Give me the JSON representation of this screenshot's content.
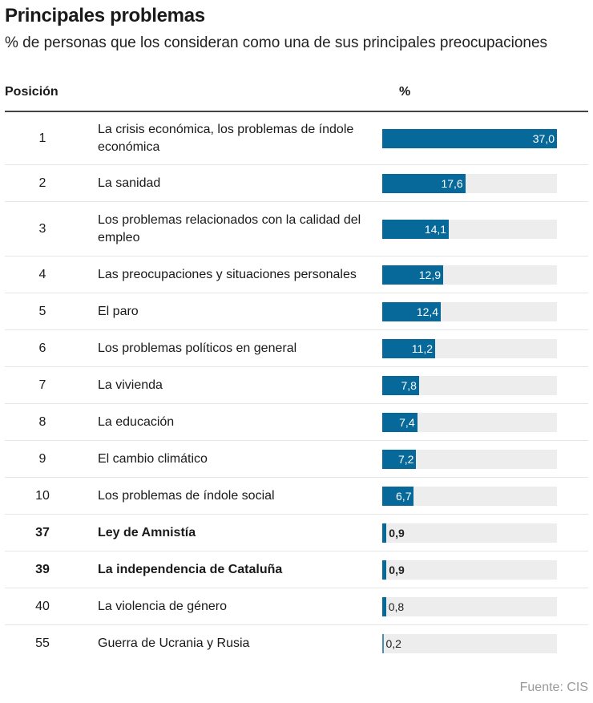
{
  "title": "Principales problemas",
  "subtitle": "% de personas que los consideran como una de sus principales preocupaciones",
  "source": "Fuente: CIS",
  "colors": {
    "bar": "#06699a",
    "track": "#ededed"
  },
  "chart_data": {
    "type": "table",
    "columns": [
      "Posición",
      "%"
    ],
    "xlim": [
      0,
      37
    ],
    "rows": [
      {
        "position": "1",
        "label": "La crisis económica, los problemas de índole económica",
        "value": 37.0,
        "value_label": "37,0",
        "bold": false
      },
      {
        "position": "2",
        "label": "La sanidad",
        "value": 17.6,
        "value_label": "17,6",
        "bold": false
      },
      {
        "position": "3",
        "label": "Los problemas relacionados con la calidad del empleo",
        "value": 14.1,
        "value_label": "14,1",
        "bold": false
      },
      {
        "position": "4",
        "label": "Las preocupaciones y situaciones personales",
        "value": 12.9,
        "value_label": "12,9",
        "bold": false
      },
      {
        "position": "5",
        "label": "El paro",
        "value": 12.4,
        "value_label": "12,4",
        "bold": false
      },
      {
        "position": "6",
        "label": "Los problemas políticos en general",
        "value": 11.2,
        "value_label": "11,2",
        "bold": false
      },
      {
        "position": "7",
        "label": "La vivienda",
        "value": 7.8,
        "value_label": "7,8",
        "bold": false
      },
      {
        "position": "8",
        "label": "La educación",
        "value": 7.4,
        "value_label": "7,4",
        "bold": false
      },
      {
        "position": "9",
        "label": "El cambio climático",
        "value": 7.2,
        "value_label": "7,2",
        "bold": false
      },
      {
        "position": "10",
        "label": "Los problemas de índole social",
        "value": 6.7,
        "value_label": "6,7",
        "bold": false
      },
      {
        "position": "37",
        "label": "Ley de Amnistía",
        "value": 0.9,
        "value_label": "0,9",
        "bold": true
      },
      {
        "position": "39",
        "label": "La independencia de Cataluña",
        "value": 0.9,
        "value_label": "0,9",
        "bold": true
      },
      {
        "position": "40",
        "label": "La violencia de género",
        "value": 0.8,
        "value_label": "0,8",
        "bold": false
      },
      {
        "position": "55",
        "label": "Guerra de Ucrania y Rusia",
        "value": 0.2,
        "value_label": "0,2",
        "bold": false
      }
    ]
  }
}
